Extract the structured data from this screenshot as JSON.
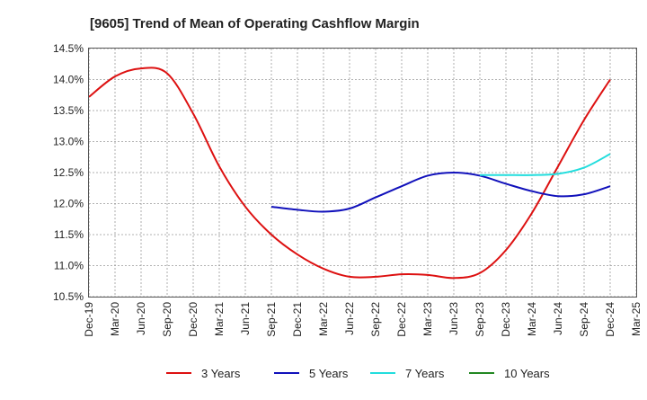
{
  "chart_data": {
    "type": "line",
    "title": "[9605]  Trend of Mean of Operating Cashflow Margin",
    "xlabel": "",
    "ylabel": "",
    "ylim": [
      10.5,
      14.5
    ],
    "y_ticks": [
      "14.5%",
      "14.0%",
      "13.5%",
      "13.0%",
      "12.5%",
      "12.0%",
      "11.5%",
      "11.0%",
      "10.5%"
    ],
    "y_tick_values": [
      14.5,
      14.0,
      13.5,
      13.0,
      12.5,
      12.0,
      11.5,
      11.0,
      10.5
    ],
    "categories": [
      "Dec-19",
      "Mar-20",
      "Jun-20",
      "Sep-20",
      "Dec-20",
      "Mar-21",
      "Jun-21",
      "Sep-21",
      "Dec-21",
      "Mar-22",
      "Jun-22",
      "Sep-22",
      "Dec-22",
      "Mar-23",
      "Jun-23",
      "Sep-23",
      "Dec-23",
      "Mar-24",
      "Jun-24",
      "Sep-24",
      "Dec-24",
      "Mar-25"
    ],
    "grid": true,
    "legend_position": "bottom",
    "series": [
      {
        "name": "3 Years",
        "color": "#dd1111",
        "values": [
          13.72,
          14.05,
          14.18,
          14.1,
          13.45,
          12.6,
          11.95,
          11.5,
          11.18,
          10.95,
          10.82,
          10.82,
          10.86,
          10.85,
          10.8,
          10.88,
          11.25,
          11.85,
          12.6,
          13.35,
          14.0,
          null
        ]
      },
      {
        "name": "5 Years",
        "color": "#1111bb",
        "values": [
          null,
          null,
          null,
          null,
          null,
          null,
          null,
          11.95,
          11.9,
          11.87,
          11.92,
          12.1,
          12.28,
          12.45,
          12.5,
          12.45,
          12.32,
          12.2,
          12.12,
          12.15,
          12.28,
          null
        ]
      },
      {
        "name": "7 Years",
        "color": "#22dddd",
        "values": [
          null,
          null,
          null,
          null,
          null,
          null,
          null,
          null,
          null,
          null,
          null,
          null,
          null,
          null,
          null,
          12.46,
          12.46,
          12.46,
          12.48,
          12.58,
          12.8,
          null
        ]
      },
      {
        "name": "10 Years",
        "color": "#228822",
        "values": [
          null,
          null,
          null,
          null,
          null,
          null,
          null,
          null,
          null,
          null,
          null,
          null,
          null,
          null,
          null,
          null,
          null,
          null,
          null,
          null,
          null,
          null
        ]
      }
    ]
  }
}
